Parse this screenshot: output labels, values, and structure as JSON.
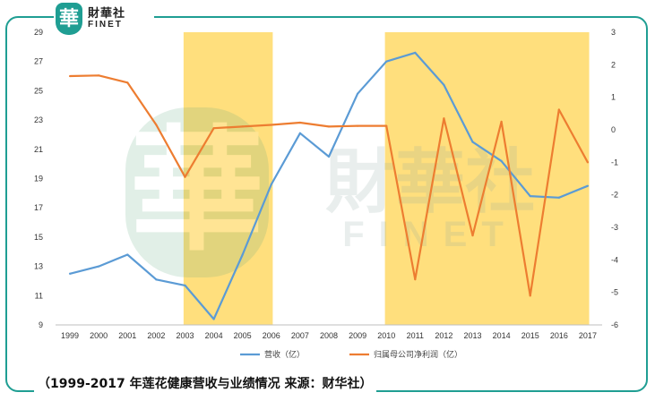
{
  "brand": {
    "badge": "華",
    "name_cn": "財華社",
    "name_en": "FINET"
  },
  "caption": "（1999-2017 年莲花健康营收与业绩情况   来源：财华社）",
  "colors": {
    "frame": "#1f9e93",
    "revenue": "#5b9bd5",
    "profit": "#ed7d31",
    "highlight": "#ffd966"
  },
  "chart_data": {
    "type": "line",
    "categories": [
      "1999",
      "2000",
      "2001",
      "2002",
      "2003",
      "2004",
      "2005",
      "2006",
      "2007",
      "2008",
      "2009",
      "2010",
      "2011",
      "2012",
      "2013",
      "2014",
      "2015",
      "2016",
      "2017"
    ],
    "series": [
      {
        "name": "营收（亿）",
        "axis": "left",
        "values": [
          12.5,
          13.0,
          13.8,
          12.1,
          11.7,
          9.4,
          13.8,
          18.6,
          22.1,
          20.5,
          24.8,
          27.0,
          27.6,
          25.4,
          21.5,
          20.2,
          17.8,
          17.7,
          18.5
        ]
      },
      {
        "name": "归属母公司净利润（亿）",
        "axis": "right",
        "values": [
          1.65,
          1.67,
          1.45,
          0.15,
          -1.45,
          0.05,
          0.1,
          0.15,
          0.22,
          0.1,
          0.12,
          0.12,
          -4.6,
          0.35,
          -3.25,
          0.25,
          -5.1,
          0.62,
          -1.0
        ]
      }
    ],
    "highlight_ranges": [
      [
        "2003",
        "2006"
      ],
      [
        "2010",
        "2017"
      ]
    ],
    "y_left": {
      "min": 9,
      "max": 29,
      "ticks": [
        9,
        11,
        13,
        15,
        17,
        19,
        21,
        23,
        25,
        27,
        29
      ]
    },
    "y_right": {
      "min": -6,
      "max": 3,
      "ticks": [
        -6,
        -5,
        -4,
        -3,
        -2,
        -1,
        0,
        1,
        2,
        3
      ]
    },
    "legend_position": "bottom",
    "grid": false
  }
}
